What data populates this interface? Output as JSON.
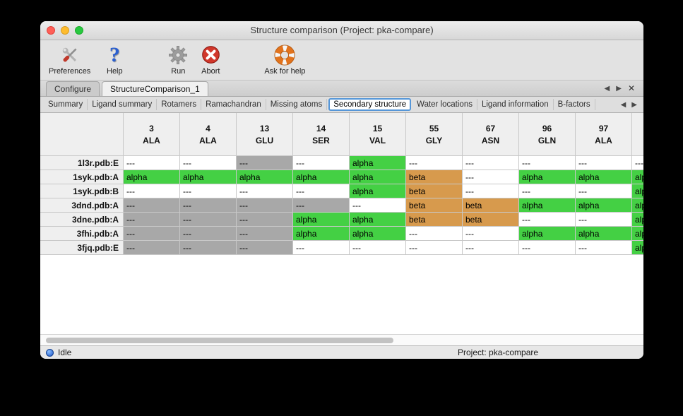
{
  "window": {
    "title": "Structure comparison (Project: pka-compare)"
  },
  "toolbar": {
    "items": [
      {
        "label": "Preferences",
        "icon": "tools-icon"
      },
      {
        "label": "Help",
        "icon": "question-icon"
      },
      {
        "label": "Run",
        "icon": "gear-icon"
      },
      {
        "label": "Abort",
        "icon": "abort-icon"
      },
      {
        "label": "Ask for help",
        "icon": "lifebuoy-icon"
      }
    ]
  },
  "main_tabs": [
    {
      "label": "Configure",
      "active": false
    },
    {
      "label": "StructureComparison_1",
      "active": true
    }
  ],
  "sub_tabs": [
    "Summary",
    "Ligand summary",
    "Rotamers",
    "Ramachandran",
    "Missing atoms",
    "Secondary structure",
    "Water locations",
    "Ligand information",
    "B-factors"
  ],
  "sub_tabs_selected": "Secondary structure",
  "icons": {
    "help_glyph": "?",
    "tab_prev": "◀",
    "tab_next": "▶",
    "tab_close": "✕",
    "subtab_prev": "◀",
    "subtab_next": "▶"
  },
  "colors": {
    "alpha_bg": "#44d044",
    "beta_bg": "#d79a4d",
    "gap_bg": "#a8a8a8",
    "none_bg": "#ffffff",
    "selected_tab_ring": "#5596d8"
  },
  "table": {
    "columns": [
      {
        "num": "3",
        "res": "ALA"
      },
      {
        "num": "4",
        "res": "ALA"
      },
      {
        "num": "13",
        "res": "GLU"
      },
      {
        "num": "14",
        "res": "SER"
      },
      {
        "num": "15",
        "res": "VAL"
      },
      {
        "num": "55",
        "res": "GLY"
      },
      {
        "num": "67",
        "res": "ASN"
      },
      {
        "num": "96",
        "res": "GLN"
      },
      {
        "num": "97",
        "res": "ALA"
      },
      {
        "num": "",
        "res": ""
      }
    ],
    "rows": [
      {
        "label": "1l3r.pdb:E",
        "cells": [
          {
            "text": "---",
            "type": "none"
          },
          {
            "text": "---",
            "type": "none"
          },
          {
            "text": "---",
            "type": "gap"
          },
          {
            "text": "---",
            "type": "none"
          },
          {
            "text": "alpha",
            "type": "alpha"
          },
          {
            "text": "---",
            "type": "none"
          },
          {
            "text": "---",
            "type": "none"
          },
          {
            "text": "---",
            "type": "none"
          },
          {
            "text": "---",
            "type": "none"
          },
          {
            "text": "---",
            "type": "none"
          }
        ]
      },
      {
        "label": "1syk.pdb:A",
        "cells": [
          {
            "text": "alpha",
            "type": "alpha"
          },
          {
            "text": "alpha",
            "type": "alpha"
          },
          {
            "text": "alpha",
            "type": "alpha"
          },
          {
            "text": "alpha",
            "type": "alpha"
          },
          {
            "text": "alpha",
            "type": "alpha"
          },
          {
            "text": "beta",
            "type": "beta"
          },
          {
            "text": "---",
            "type": "none"
          },
          {
            "text": "alpha",
            "type": "alpha"
          },
          {
            "text": "alpha",
            "type": "alpha"
          },
          {
            "text": "alpha",
            "type": "alpha"
          }
        ]
      },
      {
        "label": "1syk.pdb:B",
        "cells": [
          {
            "text": "---",
            "type": "none"
          },
          {
            "text": "---",
            "type": "none"
          },
          {
            "text": "---",
            "type": "none"
          },
          {
            "text": "---",
            "type": "none"
          },
          {
            "text": "alpha",
            "type": "alpha"
          },
          {
            "text": "beta",
            "type": "beta"
          },
          {
            "text": "---",
            "type": "none"
          },
          {
            "text": "---",
            "type": "none"
          },
          {
            "text": "---",
            "type": "none"
          },
          {
            "text": "alpha",
            "type": "alpha"
          }
        ]
      },
      {
        "label": "3dnd.pdb:A",
        "cells": [
          {
            "text": "---",
            "type": "gap"
          },
          {
            "text": "---",
            "type": "gap"
          },
          {
            "text": "---",
            "type": "gap"
          },
          {
            "text": "---",
            "type": "gap"
          },
          {
            "text": "---",
            "type": "none"
          },
          {
            "text": "beta",
            "type": "beta"
          },
          {
            "text": "beta",
            "type": "beta"
          },
          {
            "text": "alpha",
            "type": "alpha"
          },
          {
            "text": "alpha",
            "type": "alpha"
          },
          {
            "text": "alpha",
            "type": "alpha"
          }
        ]
      },
      {
        "label": "3dne.pdb:A",
        "cells": [
          {
            "text": "---",
            "type": "gap"
          },
          {
            "text": "---",
            "type": "gap"
          },
          {
            "text": "---",
            "type": "gap"
          },
          {
            "text": "alpha",
            "type": "alpha"
          },
          {
            "text": "alpha",
            "type": "alpha"
          },
          {
            "text": "beta",
            "type": "beta"
          },
          {
            "text": "beta",
            "type": "beta"
          },
          {
            "text": "---",
            "type": "none"
          },
          {
            "text": "---",
            "type": "none"
          },
          {
            "text": "alpha",
            "type": "alpha"
          }
        ]
      },
      {
        "label": "3fhi.pdb:A",
        "cells": [
          {
            "text": "---",
            "type": "gap"
          },
          {
            "text": "---",
            "type": "gap"
          },
          {
            "text": "---",
            "type": "gap"
          },
          {
            "text": "alpha",
            "type": "alpha"
          },
          {
            "text": "alpha",
            "type": "alpha"
          },
          {
            "text": "---",
            "type": "none"
          },
          {
            "text": "---",
            "type": "none"
          },
          {
            "text": "alpha",
            "type": "alpha"
          },
          {
            "text": "alpha",
            "type": "alpha"
          },
          {
            "text": "alpha",
            "type": "alpha"
          }
        ]
      },
      {
        "label": "3fjq.pdb:E",
        "cells": [
          {
            "text": "---",
            "type": "gap"
          },
          {
            "text": "---",
            "type": "gap"
          },
          {
            "text": "---",
            "type": "gap"
          },
          {
            "text": "---",
            "type": "none"
          },
          {
            "text": "---",
            "type": "none"
          },
          {
            "text": "---",
            "type": "none"
          },
          {
            "text": "---",
            "type": "none"
          },
          {
            "text": "---",
            "type": "none"
          },
          {
            "text": "---",
            "type": "none"
          },
          {
            "text": "alpha",
            "type": "alpha"
          }
        ]
      }
    ]
  },
  "statusbar": {
    "status": "Idle",
    "project": "Project: pka-compare"
  }
}
